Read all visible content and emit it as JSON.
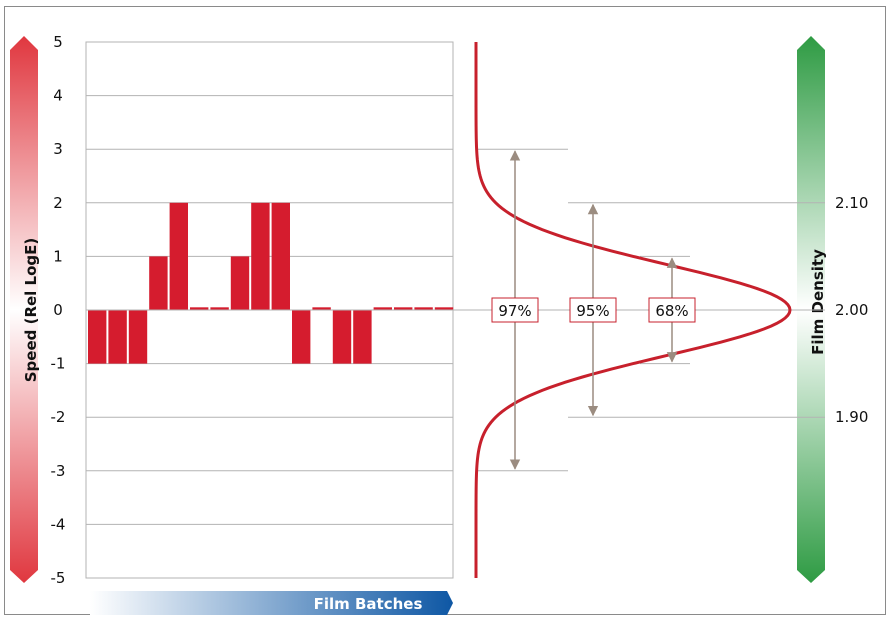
{
  "chart_data": {
    "type": "bar",
    "ylabel": "Speed (Rel LogE)",
    "xlabel": "Film Batches",
    "right_label": "Film Density",
    "ylim": [
      -5,
      5
    ],
    "y_ticks": [
      "5",
      "4",
      "3",
      "2",
      "1",
      "0",
      "-1",
      "-2",
      "-3",
      "-4",
      "-5"
    ],
    "values": [
      -1,
      -1,
      -1,
      1,
      2,
      0.05,
      0.05,
      1,
      2,
      2,
      -1,
      0.05,
      -1,
      -1,
      0.05,
      0.05,
      0.05,
      0.05
    ],
    "bar_color": "#d51c2e",
    "density_ticks": [
      {
        "label": "2.10",
        "speed": 2
      },
      {
        "label": "2.00",
        "speed": 0
      },
      {
        "label": "1.90",
        "speed": -2
      }
    ],
    "intervals": [
      {
        "label": "97%",
        "from": -3,
        "to": 3
      },
      {
        "label": "95%",
        "from": -2,
        "to": 2
      },
      {
        "label": "68%",
        "from": -1,
        "to": 1
      }
    ],
    "curve_color": "#c7202c",
    "speed_scale_colors": [
      "#e0373f",
      "#ffffff"
    ],
    "density_scale_colors": [
      "#2e9b43",
      "#ffffff"
    ],
    "batch_arrow_colors": [
      "#ffffff",
      "#0e57a4"
    ]
  }
}
